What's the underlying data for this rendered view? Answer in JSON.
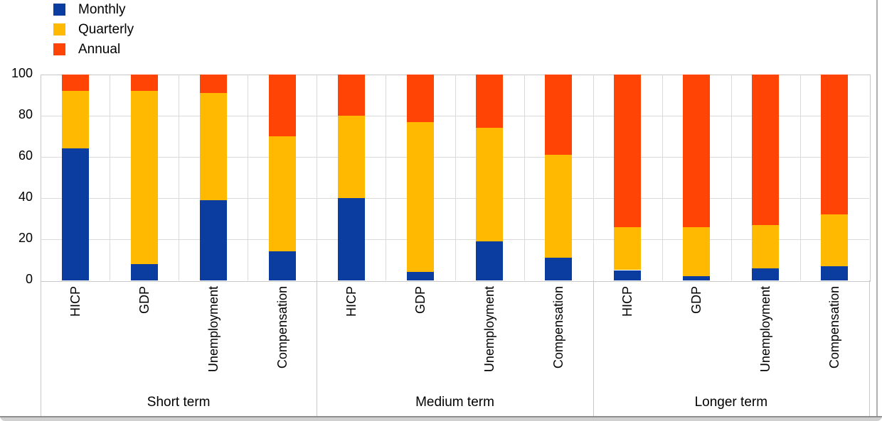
{
  "chart_data": {
    "type": "bar",
    "stacked": true,
    "title": "",
    "xlabel": "",
    "ylabel": "",
    "ylim": [
      0,
      100
    ],
    "yticks": [
      0,
      20,
      40,
      60,
      80,
      100
    ],
    "grid": true,
    "legend_position": "top-left",
    "groups": [
      {
        "label": "Short term",
        "categories": [
          "HICP",
          "GDP",
          "Unemployment",
          "Compensation"
        ]
      },
      {
        "label": "Medium term",
        "categories": [
          "HICP",
          "GDP",
          "Unemployment",
          "Compensation"
        ]
      },
      {
        "label": "Longer term",
        "categories": [
          "HICP",
          "GDP",
          "Unemployment",
          "Compensation"
        ]
      }
    ],
    "categories": [
      "HICP",
      "GDP",
      "Unemployment",
      "Compensation",
      "HICP",
      "GDP",
      "Unemployment",
      "Compensation",
      "HICP",
      "GDP",
      "Unemployment",
      "Compensation"
    ],
    "series": [
      {
        "name": "Monthly",
        "color": "#0b3c9f",
        "values": [
          64,
          8,
          39,
          14,
          40,
          4,
          19,
          11,
          5,
          2,
          6,
          7
        ]
      },
      {
        "name": "Quarterly",
        "color": "#ffb900",
        "values": [
          28,
          84,
          52,
          56,
          40,
          73,
          55,
          50,
          21,
          24,
          21,
          25
        ]
      },
      {
        "name": "Annual",
        "color": "#ff4405",
        "values": [
          8,
          8,
          9,
          30,
          20,
          23,
          26,
          39,
          74,
          74,
          73,
          68
        ]
      }
    ]
  },
  "window": {
    "bottom_edge_color": "#d0d0d0",
    "right_edge_color": "#b0b0b0"
  }
}
